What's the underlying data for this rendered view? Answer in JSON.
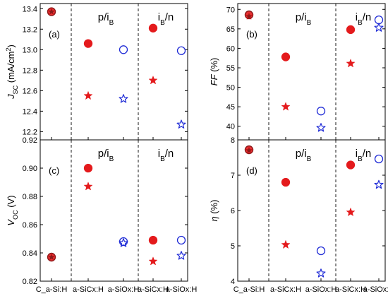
{
  "chart_data": {
    "type": "scatter",
    "categories": [
      "C_a-Si:H",
      "a-SiCx:H",
      "a-SiOx:H",
      "a-SiCx:H",
      "a-SiOx:H"
    ],
    "region_labels": [
      {
        "base": "p/i",
        "sub": "B"
      },
      {
        "base": "i",
        "sub": "B",
        "rest": "/n"
      }
    ],
    "colors": {
      "red": "#e41a1c",
      "blue": "#1f2bd6",
      "ref_edge": "#8b1a1a",
      "axis": "#000000"
    },
    "marker_legend": {
      "circle": "filled for red, open for blue",
      "star": "filled for red, open for blue"
    },
    "panels": [
      {
        "tag": "(a)",
        "ylabel": {
          "italic": "J",
          "italic_sub": "SC",
          "rest": " (mA/cm",
          "sup": "2",
          "close": ")"
        },
        "ylim": [
          12.12,
          13.45
        ],
        "yticks": [
          "12.2",
          "12.4",
          "12.6",
          "12.8",
          "13.0",
          "13.2",
          "13.4"
        ],
        "points": [
          {
            "x": 0,
            "y": 13.37,
            "marker": "circle",
            "color": "red",
            "filled": true,
            "ref": true
          },
          {
            "x": 0,
            "y": 13.37,
            "marker": "star",
            "color": "red",
            "filled": true,
            "ref": true
          },
          {
            "x": 1,
            "y": 13.06,
            "marker": "circle",
            "color": "red",
            "filled": true
          },
          {
            "x": 1,
            "y": 12.55,
            "marker": "star",
            "color": "red",
            "filled": true
          },
          {
            "x": 2,
            "y": 13.0,
            "marker": "circle",
            "color": "blue",
            "filled": false
          },
          {
            "x": 2,
            "y": 12.52,
            "marker": "star",
            "color": "blue",
            "filled": false
          },
          {
            "x": 3,
            "y": 13.21,
            "marker": "circle",
            "color": "red",
            "filled": true
          },
          {
            "x": 3,
            "y": 12.7,
            "marker": "star",
            "color": "red",
            "filled": true
          },
          {
            "x": 4,
            "y": 12.99,
            "marker": "circle",
            "color": "blue",
            "filled": false
          },
          {
            "x": 4,
            "y": 12.27,
            "marker": "star",
            "color": "blue",
            "filled": false
          }
        ]
      },
      {
        "tag": "(b)",
        "ylabel": {
          "italic": "FF",
          "rest": " (%)"
        },
        "ylim": [
          36.5,
          71.5
        ],
        "yticks": [
          "40",
          "45",
          "50",
          "55",
          "60",
          "65",
          "70"
        ],
        "points": [
          {
            "x": 0,
            "y": 68.6,
            "marker": "circle",
            "color": "red",
            "filled": true,
            "ref": true
          },
          {
            "x": 0,
            "y": 68.2,
            "marker": "star",
            "color": "red",
            "filled": true,
            "ref": true
          },
          {
            "x": 1,
            "y": 57.8,
            "marker": "circle",
            "color": "red",
            "filled": true
          },
          {
            "x": 1,
            "y": 45.0,
            "marker": "star",
            "color": "red",
            "filled": true
          },
          {
            "x": 2,
            "y": 43.9,
            "marker": "circle",
            "color": "blue",
            "filled": false
          },
          {
            "x": 2,
            "y": 39.6,
            "marker": "star",
            "color": "blue",
            "filled": false
          },
          {
            "x": 3,
            "y": 64.8,
            "marker": "circle",
            "color": "red",
            "filled": true
          },
          {
            "x": 3,
            "y": 56.1,
            "marker": "star",
            "color": "red",
            "filled": true
          },
          {
            "x": 4,
            "y": 67.3,
            "marker": "circle",
            "color": "blue",
            "filled": false
          },
          {
            "x": 4,
            "y": 65.3,
            "marker": "star",
            "color": "blue",
            "filled": false
          }
        ]
      },
      {
        "tag": "(c)",
        "ylabel": {
          "italic": "V",
          "italic_sub": "OC",
          "rest": " (V)"
        },
        "ylim": [
          0.82,
          0.92
        ],
        "yticks": [
          "0.82",
          "0.84",
          "0.86",
          "0.88",
          "0.90",
          "0.92"
        ],
        "points": [
          {
            "x": 0,
            "y": 0.837,
            "marker": "circle",
            "color": "red",
            "filled": true,
            "ref": true
          },
          {
            "x": 0,
            "y": 0.837,
            "marker": "star",
            "color": "red",
            "filled": true,
            "ref": true
          },
          {
            "x": 1,
            "y": 0.9,
            "marker": "circle",
            "color": "red",
            "filled": true
          },
          {
            "x": 1,
            "y": 0.887,
            "marker": "star",
            "color": "red",
            "filled": true
          },
          {
            "x": 2,
            "y": 0.848,
            "marker": "circle",
            "color": "blue",
            "filled": false
          },
          {
            "x": 2,
            "y": 0.847,
            "marker": "star",
            "color": "blue",
            "filled": false
          },
          {
            "x": 3,
            "y": 0.849,
            "marker": "circle",
            "color": "red",
            "filled": true
          },
          {
            "x": 3,
            "y": 0.834,
            "marker": "star",
            "color": "red",
            "filled": true
          },
          {
            "x": 4,
            "y": 0.849,
            "marker": "circle",
            "color": "blue",
            "filled": false
          },
          {
            "x": 4,
            "y": 0.838,
            "marker": "star",
            "color": "blue",
            "filled": false
          }
        ]
      },
      {
        "tag": "(d)",
        "ylabel": {
          "italic": "η",
          "rest": " (%)"
        },
        "ylim": [
          4.0,
          8.0
        ],
        "yticks": [
          "4",
          "5",
          "6",
          "7",
          "8"
        ],
        "points": [
          {
            "x": 0,
            "y": 7.72,
            "marker": "circle",
            "color": "red",
            "filled": true,
            "ref": true
          },
          {
            "x": 0,
            "y": 7.7,
            "marker": "star",
            "color": "red",
            "filled": true,
            "ref": true
          },
          {
            "x": 1,
            "y": 6.8,
            "marker": "circle",
            "color": "red",
            "filled": true
          },
          {
            "x": 1,
            "y": 5.03,
            "marker": "star",
            "color": "red",
            "filled": true
          },
          {
            "x": 2,
            "y": 4.86,
            "marker": "circle",
            "color": "blue",
            "filled": false
          },
          {
            "x": 2,
            "y": 4.22,
            "marker": "star",
            "color": "blue",
            "filled": false
          },
          {
            "x": 3,
            "y": 7.29,
            "marker": "circle",
            "color": "red",
            "filled": true
          },
          {
            "x": 3,
            "y": 5.95,
            "marker": "star",
            "color": "red",
            "filled": true
          },
          {
            "x": 4,
            "y": 7.46,
            "marker": "circle",
            "color": "blue",
            "filled": false
          },
          {
            "x": 4,
            "y": 6.73,
            "marker": "star",
            "color": "blue",
            "filled": false
          }
        ]
      }
    ]
  }
}
